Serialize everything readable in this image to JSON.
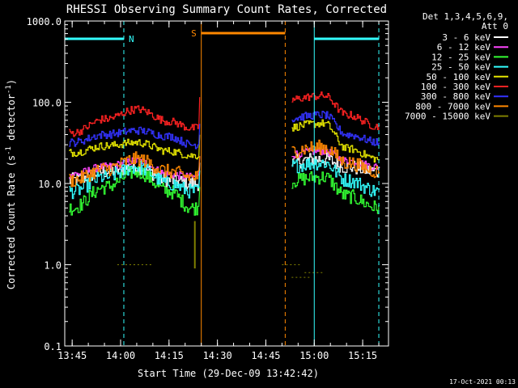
{
  "chart_data": {
    "type": "line",
    "title": "RHESSI Observing Summary Count Rates, Corrected",
    "xlabel": "Start Time (29-Dec-09 13:42:42)",
    "ylabel": "Corrected Count Rate (s",
    "ylabel_sup": "-1",
    "ylabel_end": " detector",
    "ylabel_sup2": "-1",
    "ylabel_close": ")",
    "y_scale": "log",
    "ylim": [
      0.1,
      1000
    ],
    "xlim": [
      "13:42:42",
      "15:23:00"
    ],
    "x_ticks": [
      "13:45",
      "14:00",
      "14:15",
      "14:30",
      "14:45",
      "15:00",
      "15:15"
    ],
    "y_ticks": [
      "0.1",
      "1.0",
      "10.0",
      "100.0",
      "1000.0"
    ],
    "legend_header": [
      "Det 1,3,4,5,6,9,",
      "Att 0"
    ],
    "legend_position": "right",
    "footer_date": "17-Oct-2021 00:13",
    "night_label": "N",
    "saa_label": "S",
    "series": [
      {
        "name": "3 - 6 keV",
        "color": "#ffffff",
        "x": [
          "13:45",
          "13:55",
          "14:05",
          "14:15",
          "14:22",
          "15:03",
          "15:10",
          "15:20"
        ],
        "values": [
          11,
          14,
          16,
          11,
          10,
          20,
          16,
          14
        ]
      },
      {
        "name": "6 - 12 keV",
        "color": "#ff44ff",
        "x": [
          "13:45",
          "13:55",
          "14:05",
          "14:15",
          "14:22",
          "15:03",
          "15:10",
          "15:20"
        ],
        "values": [
          13,
          16,
          19,
          13,
          12,
          25,
          19,
          16
        ]
      },
      {
        "name": "12 - 25 keV",
        "color": "#33ff33",
        "x": [
          "13:45",
          "13:55",
          "14:05",
          "14:15",
          "14:22",
          "15:03",
          "15:10",
          "15:20"
        ],
        "values": [
          5,
          9,
          14,
          8,
          5,
          12,
          7,
          5
        ]
      },
      {
        "name": "25 - 50 keV",
        "color": "#33ffff",
        "x": [
          "13:45",
          "13:55",
          "14:05",
          "14:15",
          "14:22",
          "15:03",
          "15:10",
          "15:20"
        ],
        "values": [
          8,
          12,
          16,
          10,
          8,
          18,
          11,
          8
        ]
      },
      {
        "name": "50 - 100 keV",
        "color": "#e6e600",
        "x": [
          "13:45",
          "13:55",
          "14:05",
          "14:15",
          "14:22",
          "15:03",
          "15:10",
          "15:20"
        ],
        "values": [
          24,
          29,
          32,
          25,
          22,
          55,
          27,
          20
        ]
      },
      {
        "name": "100 - 300 keV",
        "color": "#ff2222",
        "x": [
          "13:45",
          "13:55",
          "14:05",
          "14:15",
          "14:22",
          "15:03",
          "15:10",
          "15:20"
        ],
        "values": [
          42,
          62,
          82,
          58,
          48,
          120,
          70,
          50
        ]
      },
      {
        "name": "300 - 800 keV",
        "color": "#3333ff",
        "x": [
          "13:45",
          "13:55",
          "14:05",
          "14:15",
          "14:22",
          "15:03",
          "15:10",
          "15:20"
        ],
        "values": [
          32,
          40,
          45,
          38,
          30,
          70,
          40,
          32
        ]
      },
      {
        "name": "800 - 7000 keV",
        "color": "#ff8800",
        "x": [
          "13:45",
          "13:55",
          "14:05",
          "14:15",
          "14:22",
          "15:03",
          "15:10",
          "15:20"
        ],
        "values": [
          11,
          15,
          20,
          14,
          12,
          28,
          18,
          14
        ]
      },
      {
        "name": "7000 - 15000 keV",
        "color": "#808000",
        "x": [
          "14:02",
          "14:07",
          "14:23",
          "14:53",
          "14:56",
          "15:00"
        ],
        "values": [
          1.0,
          1.0,
          2.5,
          1.0,
          0.7,
          0.8
        ]
      }
    ]
  }
}
